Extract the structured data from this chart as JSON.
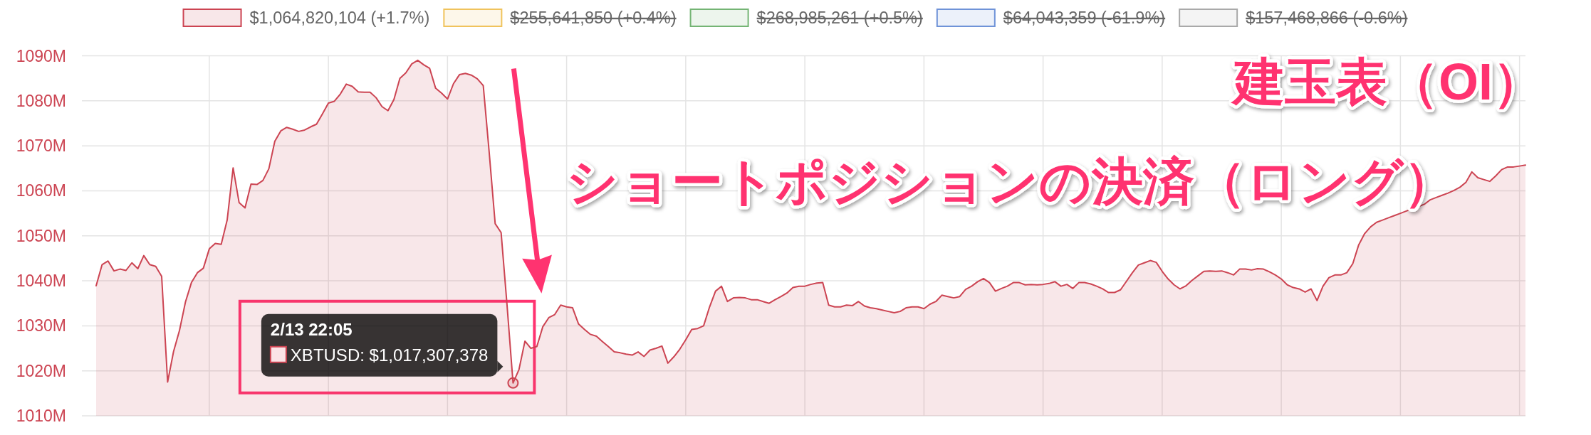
{
  "chart_data": {
    "type": "area",
    "title": "建玉表（OI）",
    "categories": [
      null,
      null,
      null,
      null,
      null,
      null,
      null,
      null,
      null,
      null,
      null,
      null,
      null,
      null,
      null,
      null,
      null,
      null,
      null,
      null,
      null,
      null,
      null,
      null,
      null,
      null,
      null,
      null,
      null,
      null,
      null,
      null,
      null,
      null,
      null,
      null,
      null,
      null,
      null,
      null,
      null,
      null,
      null,
      null,
      null,
      null,
      null,
      null,
      null,
      null,
      null,
      null,
      null,
      null,
      null,
      null,
      null,
      null,
      null,
      null,
      null,
      null,
      null,
      null,
      null,
      null,
      null,
      null,
      null,
      null,
      null,
      null,
      null,
      null,
      null,
      null,
      null,
      null,
      null,
      null,
      null,
      null,
      null,
      null,
      null,
      null,
      null,
      null,
      null,
      null,
      null,
      null,
      null,
      null,
      null,
      null,
      null,
      null,
      null,
      null,
      null,
      null,
      null,
      null,
      null,
      null,
      null,
      null,
      null,
      null,
      null,
      null,
      null,
      null,
      null,
      null,
      null,
      null,
      null,
      null,
      null,
      null,
      null,
      null,
      null,
      null,
      null,
      null,
      null,
      null,
      null,
      null,
      null,
      null,
      null,
      null,
      null,
      null,
      null,
      null,
      null,
      null,
      null,
      null,
      null,
      null,
      null,
      null,
      null,
      null,
      null,
      null,
      null,
      null,
      null,
      null,
      null,
      null,
      null,
      null,
      null,
      null,
      null,
      null,
      null,
      null,
      null,
      null,
      null,
      null,
      null,
      null,
      null,
      null,
      null,
      null,
      null,
      null,
      null,
      null,
      null,
      null,
      null,
      null,
      null,
      null,
      null,
      null,
      null,
      null,
      null,
      null,
      null,
      null,
      null,
      null,
      null,
      null,
      null,
      null,
      null,
      null,
      null,
      null,
      null,
      null,
      null,
      null,
      null,
      null,
      null,
      null,
      null,
      null,
      null,
      null,
      null,
      null,
      null,
      null,
      null,
      null,
      null,
      null,
      null,
      null,
      null,
      null,
      null,
      null,
      null,
      null,
      null,
      null,
      null,
      null,
      null,
      null,
      null,
      null,
      null
    ],
    "series": [
      {
        "name": "$1,064,820,104 (+1.7%)",
        "color": "#cc4452",
        "values": [
          1038.9,
          1043.6,
          1044.4,
          1042.2,
          1042.6,
          1042.3,
          1044.0,
          1042.7,
          1045.6,
          1043.6,
          1043.2,
          1041.0,
          1017.5,
          1024.3,
          1029.0,
          1035.3,
          1039.6,
          1041.8,
          1042.8,
          1047.1,
          1048.3,
          1048.1,
          1053.5,
          1065.1,
          1057.4,
          1056.2,
          1061.5,
          1061.4,
          1062.3,
          1064.9,
          1071.0,
          1073.3,
          1074.1,
          1073.7,
          1073.2,
          1073.5,
          1074.2,
          1074.8,
          1077.1,
          1079.5,
          1079.9,
          1081.5,
          1083.7,
          1083.2,
          1082.0,
          1081.9,
          1081.9,
          1080.7,
          1078.7,
          1077.8,
          1080.3,
          1085.0,
          1086.2,
          1088.2,
          1089.0,
          1088.0,
          1087.2,
          1082.8,
          1081.7,
          1080.4,
          1083.8,
          1085.8,
          1086.1,
          1085.7,
          1084.9,
          1083.4,
          1068.5,
          1052.7,
          1050.7,
          1034.5,
          1017.3,
          1020.3,
          1026.6,
          1025.0,
          1025.4,
          1029.8,
          1031.8,
          1032.5,
          1034.6,
          1034.2,
          1034.0,
          1030.4,
          1029.2,
          1028.1,
          1027.7,
          1026.5,
          1025.4,
          1024.2,
          1024.0,
          1023.7,
          1023.5,
          1024.2,
          1023.2,
          1024.6,
          1025.0,
          1025.5,
          1021.7,
          1023.1,
          1024.8,
          1026.9,
          1029.2,
          1029.4,
          1030.0,
          1034.2,
          1037.7,
          1038.8,
          1035.4,
          1036.2,
          1036.3,
          1036.2,
          1035.8,
          1035.8,
          1035.4,
          1035.0,
          1035.8,
          1036.5,
          1037.3,
          1038.5,
          1038.8,
          1038.8,
          1039.2,
          1039.5,
          1039.6,
          1034.6,
          1034.2,
          1034.2,
          1034.6,
          1034.5,
          1035.4,
          1034.4,
          1034.0,
          1033.8,
          1033.5,
          1033.2,
          1032.9,
          1033.2,
          1034.0,
          1034.2,
          1034.2,
          1033.8,
          1034.8,
          1035.4,
          1036.8,
          1036.5,
          1036.2,
          1036.5,
          1038.1,
          1038.8,
          1039.8,
          1040.5,
          1039.6,
          1037.7,
          1038.3,
          1038.8,
          1039.6,
          1039.6,
          1039.1,
          1039.2,
          1039.1,
          1039.2,
          1039.4,
          1039.8,
          1038.8,
          1039.2,
          1038.3,
          1039.6,
          1039.6,
          1039.3,
          1038.8,
          1038.2,
          1037.4,
          1037.4,
          1038.0,
          1039.9,
          1041.8,
          1043.5,
          1044.0,
          1044.5,
          1044.1,
          1042.1,
          1040.4,
          1039.1,
          1038.2,
          1038.9,
          1040.1,
          1041.1,
          1042.1,
          1042.2,
          1042.1,
          1042.2,
          1041.8,
          1041.3,
          1042.6,
          1042.6,
          1042.4,
          1042.7,
          1042.6,
          1042.0,
          1041.3,
          1040.4,
          1039.1,
          1038.5,
          1038.2,
          1037.5,
          1038.2,
          1035.6,
          1038.8,
          1040.7,
          1041.3,
          1041.3,
          1041.8,
          1043.8,
          1048.0,
          1050.5,
          1052.0,
          1053.0,
          1053.5,
          1054.0,
          1054.5,
          1055.0,
          1055.5,
          1056.0,
          1056.5,
          1057.0,
          1058.0,
          1058.5,
          1059.0,
          1059.5,
          1060.1,
          1060.8,
          1061.9,
          1064.2,
          1062.9,
          1062.5,
          1062.1,
          1063.3,
          1064.7,
          1065.3,
          1065.3,
          1065.5,
          1065.7
        ]
      },
      {
        "name": "$255,641,850 (+0.4%)",
        "color": "#f0c35c",
        "values": [
          null,
          null,
          null,
          null,
          null,
          null,
          null,
          null,
          null,
          null,
          null,
          null,
          null,
          null,
          null,
          null,
          null,
          null,
          null,
          null,
          null,
          null,
          null,
          null,
          null,
          null,
          null,
          null,
          null,
          null,
          null,
          null,
          null,
          null,
          null,
          null,
          null,
          null,
          null,
          null,
          null,
          null,
          null,
          null,
          null,
          null,
          null,
          null,
          null,
          null,
          null,
          null,
          null,
          null,
          null,
          null,
          null,
          null,
          null,
          null,
          null,
          null,
          null,
          null,
          null,
          null,
          null,
          null,
          null,
          null,
          null,
          null,
          null,
          null,
          null,
          null,
          null,
          null,
          null,
          null,
          null,
          null,
          null,
          null,
          null,
          null,
          null,
          null,
          null,
          null,
          null,
          null,
          null,
          null,
          null,
          null,
          null,
          null,
          null,
          null,
          null,
          null,
          null,
          null,
          null,
          null,
          null,
          null,
          null,
          null,
          null,
          null,
          null,
          null,
          null,
          null,
          null,
          null,
          null,
          null,
          null,
          null,
          null,
          null,
          null,
          null,
          null,
          null,
          null,
          null,
          null,
          null,
          null,
          null,
          null,
          null,
          null,
          null,
          null,
          null,
          null,
          null,
          null,
          null,
          null,
          null,
          null,
          null,
          null,
          null,
          null,
          null,
          null,
          null,
          null,
          null,
          null,
          null,
          null,
          null,
          null,
          null,
          null,
          null,
          null,
          null,
          null,
          null,
          null,
          null,
          null,
          null,
          null,
          null,
          null,
          null,
          null,
          null,
          null,
          null,
          null,
          null,
          null,
          null,
          null,
          null,
          null,
          null,
          null,
          null,
          null,
          null,
          null,
          null,
          null,
          null,
          null,
          null,
          null,
          null,
          null,
          null,
          null,
          null,
          null,
          null,
          null,
          null,
          null,
          null,
          null,
          null,
          null,
          null,
          null,
          null,
          null,
          null,
          null,
          null,
          null,
          null,
          null,
          null,
          null,
          null,
          null,
          null,
          null,
          null,
          null,
          null,
          null,
          null,
          null,
          null,
          null,
          null,
          null,
          null,
          null
        ]
      },
      {
        "name": "$268,985,261 (+0.5%)",
        "color": "#74b474",
        "values": [
          null,
          null,
          null,
          null,
          null,
          null,
          null,
          null,
          null,
          null,
          null,
          null,
          null,
          null,
          null,
          null,
          null,
          null,
          null,
          null,
          null,
          null,
          null,
          null,
          null,
          null,
          null,
          null,
          null,
          null,
          null,
          null,
          null,
          null,
          null,
          null,
          null,
          null,
          null,
          null,
          null,
          null,
          null,
          null,
          null,
          null,
          null,
          null,
          null,
          null,
          null,
          null,
          null,
          null,
          null,
          null,
          null,
          null,
          null,
          null,
          null,
          null,
          null,
          null,
          null,
          null,
          null,
          null,
          null,
          null,
          null,
          null,
          null,
          null,
          null,
          null,
          null,
          null,
          null,
          null,
          null,
          null,
          null,
          null,
          null,
          null,
          null,
          null,
          null,
          null,
          null,
          null,
          null,
          null,
          null,
          null,
          null,
          null,
          null,
          null,
          null,
          null,
          null,
          null,
          null,
          null,
          null,
          null,
          null,
          null,
          null,
          null,
          null,
          null,
          null,
          null,
          null,
          null,
          null,
          null,
          null,
          null,
          null,
          null,
          null,
          null,
          null,
          null,
          null,
          null,
          null,
          null,
          null,
          null,
          null,
          null,
          null,
          null,
          null,
          null,
          null,
          null,
          null,
          null,
          null,
          null,
          null,
          null,
          null,
          null,
          null,
          null,
          null,
          null,
          null,
          null,
          null,
          null,
          null,
          null,
          null,
          null,
          null,
          null,
          null,
          null,
          null,
          null,
          null,
          null,
          null,
          null,
          null,
          null,
          null,
          null,
          null,
          null,
          null,
          null,
          null,
          null,
          null,
          null,
          null,
          null,
          null,
          null,
          null,
          null,
          null,
          null,
          null,
          null,
          null,
          null,
          null,
          null,
          null,
          null,
          null,
          null,
          null,
          null,
          null,
          null,
          null,
          null,
          null,
          null,
          null,
          null,
          null,
          null,
          null,
          null,
          null,
          null,
          null,
          null,
          null,
          null,
          null,
          null,
          null,
          null,
          null,
          null,
          null,
          null,
          null,
          null,
          null,
          null,
          null,
          null,
          null,
          null,
          null,
          null,
          null
        ]
      },
      {
        "name": "$64,043,359 (-61.9%)",
        "color": "#6f93d8",
        "values": [
          null,
          null,
          null,
          null,
          null,
          null,
          null,
          null,
          null,
          null,
          null,
          null,
          null,
          null,
          null,
          null,
          null,
          null,
          null,
          null,
          null,
          null,
          null,
          null,
          null,
          null,
          null,
          null,
          null,
          null,
          null,
          null,
          null,
          null,
          null,
          null,
          null,
          null,
          null,
          null,
          null,
          null,
          null,
          null,
          null,
          null,
          null,
          null,
          null,
          null,
          null,
          null,
          null,
          null,
          null,
          null,
          null,
          null,
          null,
          null,
          null,
          null,
          null,
          null,
          null,
          null,
          null,
          null,
          null,
          null,
          null,
          null,
          null,
          null,
          null,
          null,
          null,
          null,
          null,
          null,
          null,
          null,
          null,
          null,
          null,
          null,
          null,
          null,
          null,
          null,
          null,
          null,
          null,
          null,
          null,
          null,
          null,
          null,
          null,
          null,
          null,
          null,
          null,
          null,
          null,
          null,
          null,
          null,
          null,
          null,
          null,
          null,
          null,
          null,
          null,
          null,
          null,
          null,
          null,
          null,
          null,
          null,
          null,
          null,
          null,
          null,
          null,
          null,
          null,
          null,
          null,
          null,
          null,
          null,
          null,
          null,
          null,
          null,
          null,
          null,
          null,
          null,
          null,
          null,
          null,
          null,
          null,
          null,
          null,
          null,
          null,
          null,
          null,
          null,
          null,
          null,
          null,
          null,
          null,
          null,
          null,
          null,
          null,
          null,
          null,
          null,
          null,
          null,
          null,
          null,
          null,
          null,
          null,
          null,
          null,
          null,
          null,
          null,
          null,
          null,
          null,
          null,
          null,
          null,
          null,
          null,
          null,
          null,
          null,
          null,
          null,
          null,
          null,
          null,
          null,
          null,
          null,
          null,
          null,
          null,
          null,
          null,
          null,
          null,
          null,
          null,
          null,
          null,
          null,
          null,
          null,
          null,
          null,
          null,
          null,
          null,
          null,
          null,
          null,
          null,
          null,
          null,
          null,
          null,
          null,
          null,
          null,
          null,
          null,
          null,
          null,
          null,
          null,
          null,
          null,
          null,
          null,
          null,
          null,
          null,
          null
        ]
      },
      {
        "name": "$157,468,866 (-0.6%)",
        "color": "#a9a9a9",
        "values": [
          null,
          null,
          null,
          null,
          null,
          null,
          null,
          null,
          null,
          null,
          null,
          null,
          null,
          null,
          null,
          null,
          null,
          null,
          null,
          null,
          null,
          null,
          null,
          null,
          null,
          null,
          null,
          null,
          null,
          null,
          null,
          null,
          null,
          null,
          null,
          null,
          null,
          null,
          null,
          null,
          null,
          null,
          null,
          null,
          null,
          null,
          null,
          null,
          null,
          null,
          null,
          null,
          null,
          null,
          null,
          null,
          null,
          null,
          null,
          null,
          null,
          null,
          null,
          null,
          null,
          null,
          null,
          null,
          null,
          null,
          null,
          null,
          null,
          null,
          null,
          null,
          null,
          null,
          null,
          null,
          null,
          null,
          null,
          null,
          null,
          null,
          null,
          null,
          null,
          null,
          null,
          null,
          null,
          null,
          null,
          null,
          null,
          null,
          null,
          null,
          null,
          null,
          null,
          null,
          null,
          null,
          null,
          null,
          null,
          null,
          null,
          null,
          null,
          null,
          null,
          null,
          null,
          null,
          null,
          null,
          null,
          null,
          null,
          null,
          null,
          null,
          null,
          null,
          null,
          null,
          null,
          null,
          null,
          null,
          null,
          null,
          null,
          null,
          null,
          null,
          null,
          null,
          null,
          null,
          null,
          null,
          null,
          null,
          null,
          null,
          null,
          null,
          null,
          null,
          null,
          null,
          null,
          null,
          null,
          null,
          null,
          null,
          null,
          null,
          null,
          null,
          null,
          null,
          null,
          null,
          null,
          null,
          null,
          null,
          null,
          null,
          null,
          null,
          null,
          null,
          null,
          null,
          null,
          null,
          null,
          null,
          null,
          null,
          null,
          null,
          null,
          null,
          null,
          null,
          null,
          null,
          null,
          null,
          null,
          null,
          null,
          null,
          null,
          null,
          null,
          null,
          null,
          null,
          null,
          null,
          null,
          null,
          null,
          null,
          null,
          null,
          null,
          null,
          null,
          null,
          null,
          null,
          null,
          null,
          null,
          null,
          null,
          null,
          null,
          null,
          null,
          null,
          null,
          null,
          null,
          null,
          null,
          null,
          null,
          null,
          null
        ]
      }
    ],
    "ylim": [
      1010,
      1090
    ],
    "yticks": [
      {
        "value": 1010,
        "label": "1010M"
      },
      {
        "value": 1020,
        "label": "1020M"
      },
      {
        "value": 1030,
        "label": "1030M"
      },
      {
        "value": 1040,
        "label": "1040M"
      },
      {
        "value": 1050,
        "label": "1050M"
      },
      {
        "value": 1060,
        "label": "1060M"
      },
      {
        "value": 1070,
        "label": "1070M"
      },
      {
        "value": 1080,
        "label": "1080M"
      },
      {
        "value": 1090,
        "label": "1090M"
      }
    ],
    "grid": true,
    "legend": "top",
    "annotations": [
      "ショートポジションの決済（ロング）",
      "2/13 22:05\nXBTUSD: $1,017,307,378"
    ]
  }
}
